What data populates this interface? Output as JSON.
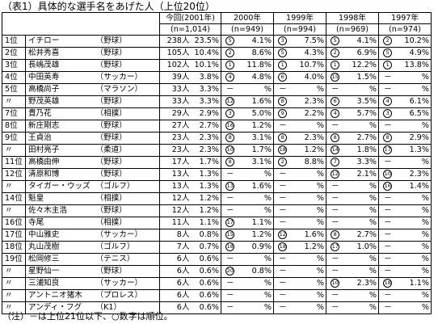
{
  "title": "（表1）具体的な選手名をあげた人（上位20位）",
  "header": {
    "col_2001": "今回(2001年)",
    "n_2001": "(n=1,014)",
    "col_2000": "2000年",
    "n_2000": "(n=949)",
    "col_1999": "1999年",
    "n_1999": "(n=994)",
    "col_1998": "1998年",
    "n_1998": "(n=969)",
    "col_1997": "1997年",
    "n_1997": "(n=974)"
  },
  "rows": [
    {
      "rank": "1位",
      "name": "イチロー",
      "cat": "（野球）",
      "n": "238人",
      "p": "23.5%",
      "r00": "5",
      "p00": "4.1%",
      "r99": "3",
      "p99": "7.5%",
      "r98": "5",
      "p98": "4.1%",
      "r97": "2",
      "p97": "10.2%"
    },
    {
      "rank": "2位",
      "name": "松井秀喜",
      "cat": "（野球）",
      "n": "105人",
      "p": "10.4%",
      "r00": "2",
      "p00": "8.6%",
      "r99": "5",
      "p99": "4.3%",
      "r98": "2",
      "p98": "6.9%",
      "r97": "5",
      "p97": "4.9%"
    },
    {
      "rank": "3位",
      "name": "長嶋茂雄",
      "cat": "（野球）",
      "n": "102人",
      "p": "10.1%",
      "r00": "1",
      "p00": "11.8%",
      "r99": "1",
      "p99": "10.7%",
      "r98": "1",
      "p98": "12.2%",
      "r97": "1",
      "p97": "13.8%"
    },
    {
      "rank": "4位",
      "name": "中田英寿",
      "cat": "（サッカー）",
      "n": "39人",
      "p": "3.8%",
      "r00": "4",
      "p00": "4.8%",
      "r99": "6",
      "p99": "4.0%",
      "r98": "15",
      "p98": "1.5%",
      "r97": "－",
      "p97": "%"
    },
    {
      "rank": "5位",
      "name": "高橋尚子",
      "cat": "（マラソン）",
      "n": "33人",
      "p": "3.3%",
      "r00": "－",
      "p00": "%",
      "r99": "－",
      "p99": "%",
      "r98": "－",
      "p98": "%",
      "r97": "－",
      "p97": "%"
    },
    {
      "rank": "〃",
      "name": "野茂英雄",
      "cat": "（野球）",
      "n": "33人",
      "p": "3.3%",
      "r00": "12",
      "p00": "1.6%",
      "r99": "8",
      "p99": "2.3%",
      "r98": "6",
      "p98": "3.5%",
      "r97": "4",
      "p97": "6.1%"
    },
    {
      "rank": "7位",
      "name": "貴乃花",
      "cat": "（相撲）",
      "n": "29人",
      "p": "2.9%",
      "r00": "3",
      "p00": "5.0%",
      "r99": "9",
      "p99": "2.2%",
      "r98": "4",
      "p98": "5.7%",
      "r97": "3",
      "p97": "6.5%"
    },
    {
      "rank": "8位",
      "name": "新庄剛志",
      "cat": "（野球）",
      "n": "27人",
      "p": "2.7%",
      "r00": "16",
      "p00": "1.2%",
      "r99": "－",
      "p99": "%",
      "r98": "－",
      "p98": "%",
      "r97": "－",
      "p97": "%"
    },
    {
      "rank": "9位",
      "name": "王貞治",
      "cat": "（野球）",
      "n": "23人",
      "p": "2.3%",
      "r00": "8",
      "p00": "3.1%",
      "r99": "8",
      "p99": "2.3%",
      "r98": "8",
      "p98": "2.7%",
      "r97": "8",
      "p97": "2.9%"
    },
    {
      "rank": "〃",
      "name": "田村亮子",
      "cat": "（柔道）",
      "n": "23人",
      "p": "2.3%",
      "r00": "10",
      "p00": "1.7%",
      "r99": "18",
      "p99": "1.2%",
      "r98": "14",
      "p98": "1.8%",
      "r97": "17",
      "p97": "1.3%"
    },
    {
      "rank": "11位",
      "name": "高橋由伸",
      "cat": "（野球）",
      "n": "17人",
      "p": "1.7%",
      "r00": "8",
      "p00": "3.1%",
      "r99": "2",
      "p99": "8.8%",
      "r98": "7",
      "p98": "3.3%",
      "r97": "－",
      "p97": "%"
    },
    {
      "rank": "12位",
      "name": "清原和博",
      "cat": "（野球）",
      "n": "13人",
      "p": "1.3%",
      "r00": "－",
      "p00": "%",
      "r99": "－",
      "p99": "%",
      "r98": "12",
      "p98": "2.1%",
      "r97": "10",
      "p97": "2.3%"
    },
    {
      "rank": "〃",
      "name": "タイガー・ウッズ",
      "cat": "（ゴルフ）",
      "n": "13人",
      "p": "1.3%",
      "r00": "13",
      "p00": "1.6%",
      "r99": "－",
      "p99": "%",
      "r98": "－",
      "p98": "%",
      "r97": "16",
      "p97": "1.4%"
    },
    {
      "rank": "14位",
      "name": "魁皇",
      "cat": "（相撲）",
      "n": "12人",
      "p": "1.2%",
      "r00": "－",
      "p00": "%",
      "r99": "－",
      "p99": "%",
      "r98": "－",
      "p98": "%",
      "r97": "－",
      "p97": "%"
    },
    {
      "rank": "〃",
      "name": "佐々木主浩",
      "cat": "（野球）",
      "n": "12人",
      "p": "1.2%",
      "r00": "－",
      "p00": "%",
      "r99": "－",
      "p99": "%",
      "r98": "－",
      "p98": "%",
      "r97": "－",
      "p97": "%"
    },
    {
      "rank": "16位",
      "name": "寺尾",
      "cat": "（相撲）",
      "n": "11人",
      "p": "1.1%",
      "r00": "17",
      "p00": "1.1%",
      "r99": "－",
      "p99": "%",
      "r98": "－",
      "p98": "%",
      "r97": "－",
      "p97": "%"
    },
    {
      "rank": "17位",
      "name": "中山雅史",
      "cat": "（サッカー）",
      "n": "8人",
      "p": "0.8%",
      "r00": "15",
      "p00": "1.2%",
      "r99": "12",
      "p99": "1.6%",
      "r98": "8",
      "p98": "2.7%",
      "r97": "－",
      "p97": "%"
    },
    {
      "rank": "18位",
      "name": "丸山茂樹",
      "cat": "（ゴルフ）",
      "n": "7人",
      "p": "0.7%",
      "r00": "18",
      "p00": "0.9%",
      "r99": "18",
      "p99": "1.2%",
      "r98": "17",
      "p98": "1.0%",
      "r97": "－",
      "p97": "%"
    },
    {
      "rank": "19位",
      "name": "松岡修三",
      "cat": "（テニス）",
      "n": "6人",
      "p": "0.6%",
      "r00": "－",
      "p00": "%",
      "r99": "－",
      "p99": "%",
      "r98": "－",
      "p98": "%",
      "r97": "－",
      "p97": "%"
    },
    {
      "rank": "〃",
      "name": "星野仙一",
      "cat": "（野球）",
      "n": "6人",
      "p": "0.6%",
      "r00": "20",
      "p00": "0.8%",
      "r99": "－",
      "p99": "%",
      "r98": "－",
      "p98": "%",
      "r97": "－",
      "p97": "%"
    },
    {
      "rank": "〃",
      "name": "三浦知良",
      "cat": "（サッカー）",
      "n": "6人",
      "p": "0.6%",
      "r00": "－",
      "p00": "%",
      "r99": "－",
      "p99": "%",
      "r98": "10",
      "p98": "2.3%",
      "r97": "18",
      "p97": "1.1%"
    },
    {
      "rank": "〃",
      "name": "アントニオ猪木",
      "cat": "（プロレス）",
      "n": "6人",
      "p": "0.6%",
      "r00": "－",
      "p00": "%",
      "r99": "－",
      "p99": "%",
      "r98": "－",
      "p98": "%",
      "r97": "－",
      "p97": "%"
    },
    {
      "rank": "〃",
      "name": "アンディ・フグ",
      "cat": "（K1）",
      "n": "6人",
      "p": "0.6%",
      "r00": "－",
      "p00": "%",
      "r99": "－",
      "p99": "%",
      "r98": "－",
      "p98": "%",
      "r97": "－",
      "p97": "%"
    }
  ],
  "note": "（注）－は上位21位以下、○数字は順位。"
}
